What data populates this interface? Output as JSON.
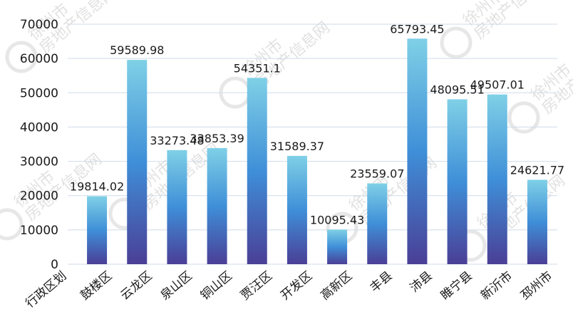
{
  "chart_data": {
    "type": "bar",
    "categories": [
      "鼓楼区",
      "云龙区",
      "泉山区",
      "铜山区",
      "贾汪区",
      "开发区",
      "高新区",
      "丰县",
      "沛县",
      "睢宁县",
      "新沂市",
      "邳州市"
    ],
    "values": [
      19814.02,
      59589.98,
      33273.48,
      33853.39,
      54351.1,
      31589.37,
      10095.43,
      23559.07,
      65793.45,
      48095.51,
      49507.01,
      24621.77
    ],
    "value_labels": [
      "19814.02",
      "59589.98",
      "33273.48",
      "33853.39",
      "54351.1",
      "31589.37",
      "10095.43",
      "23559.07",
      "65793.45",
      "48095.51",
      "49507.01",
      "24621.77"
    ],
    "yticks": [
      "0",
      "10000",
      "20000",
      "30000",
      "40000",
      "50000",
      "60000",
      "70000"
    ],
    "ylim": [
      0,
      70000
    ],
    "xlabel": "行政区划",
    "grid": true,
    "colors": {
      "bar_top": "#7fd0e6",
      "bar_mid": "#3f8fd8",
      "bar_bottom": "#4a3f96",
      "grid": "#cfdbea",
      "text": "#1a1a1a"
    }
  },
  "watermark": {
    "line1": "徐州市",
    "line2": "房地产信息网"
  }
}
